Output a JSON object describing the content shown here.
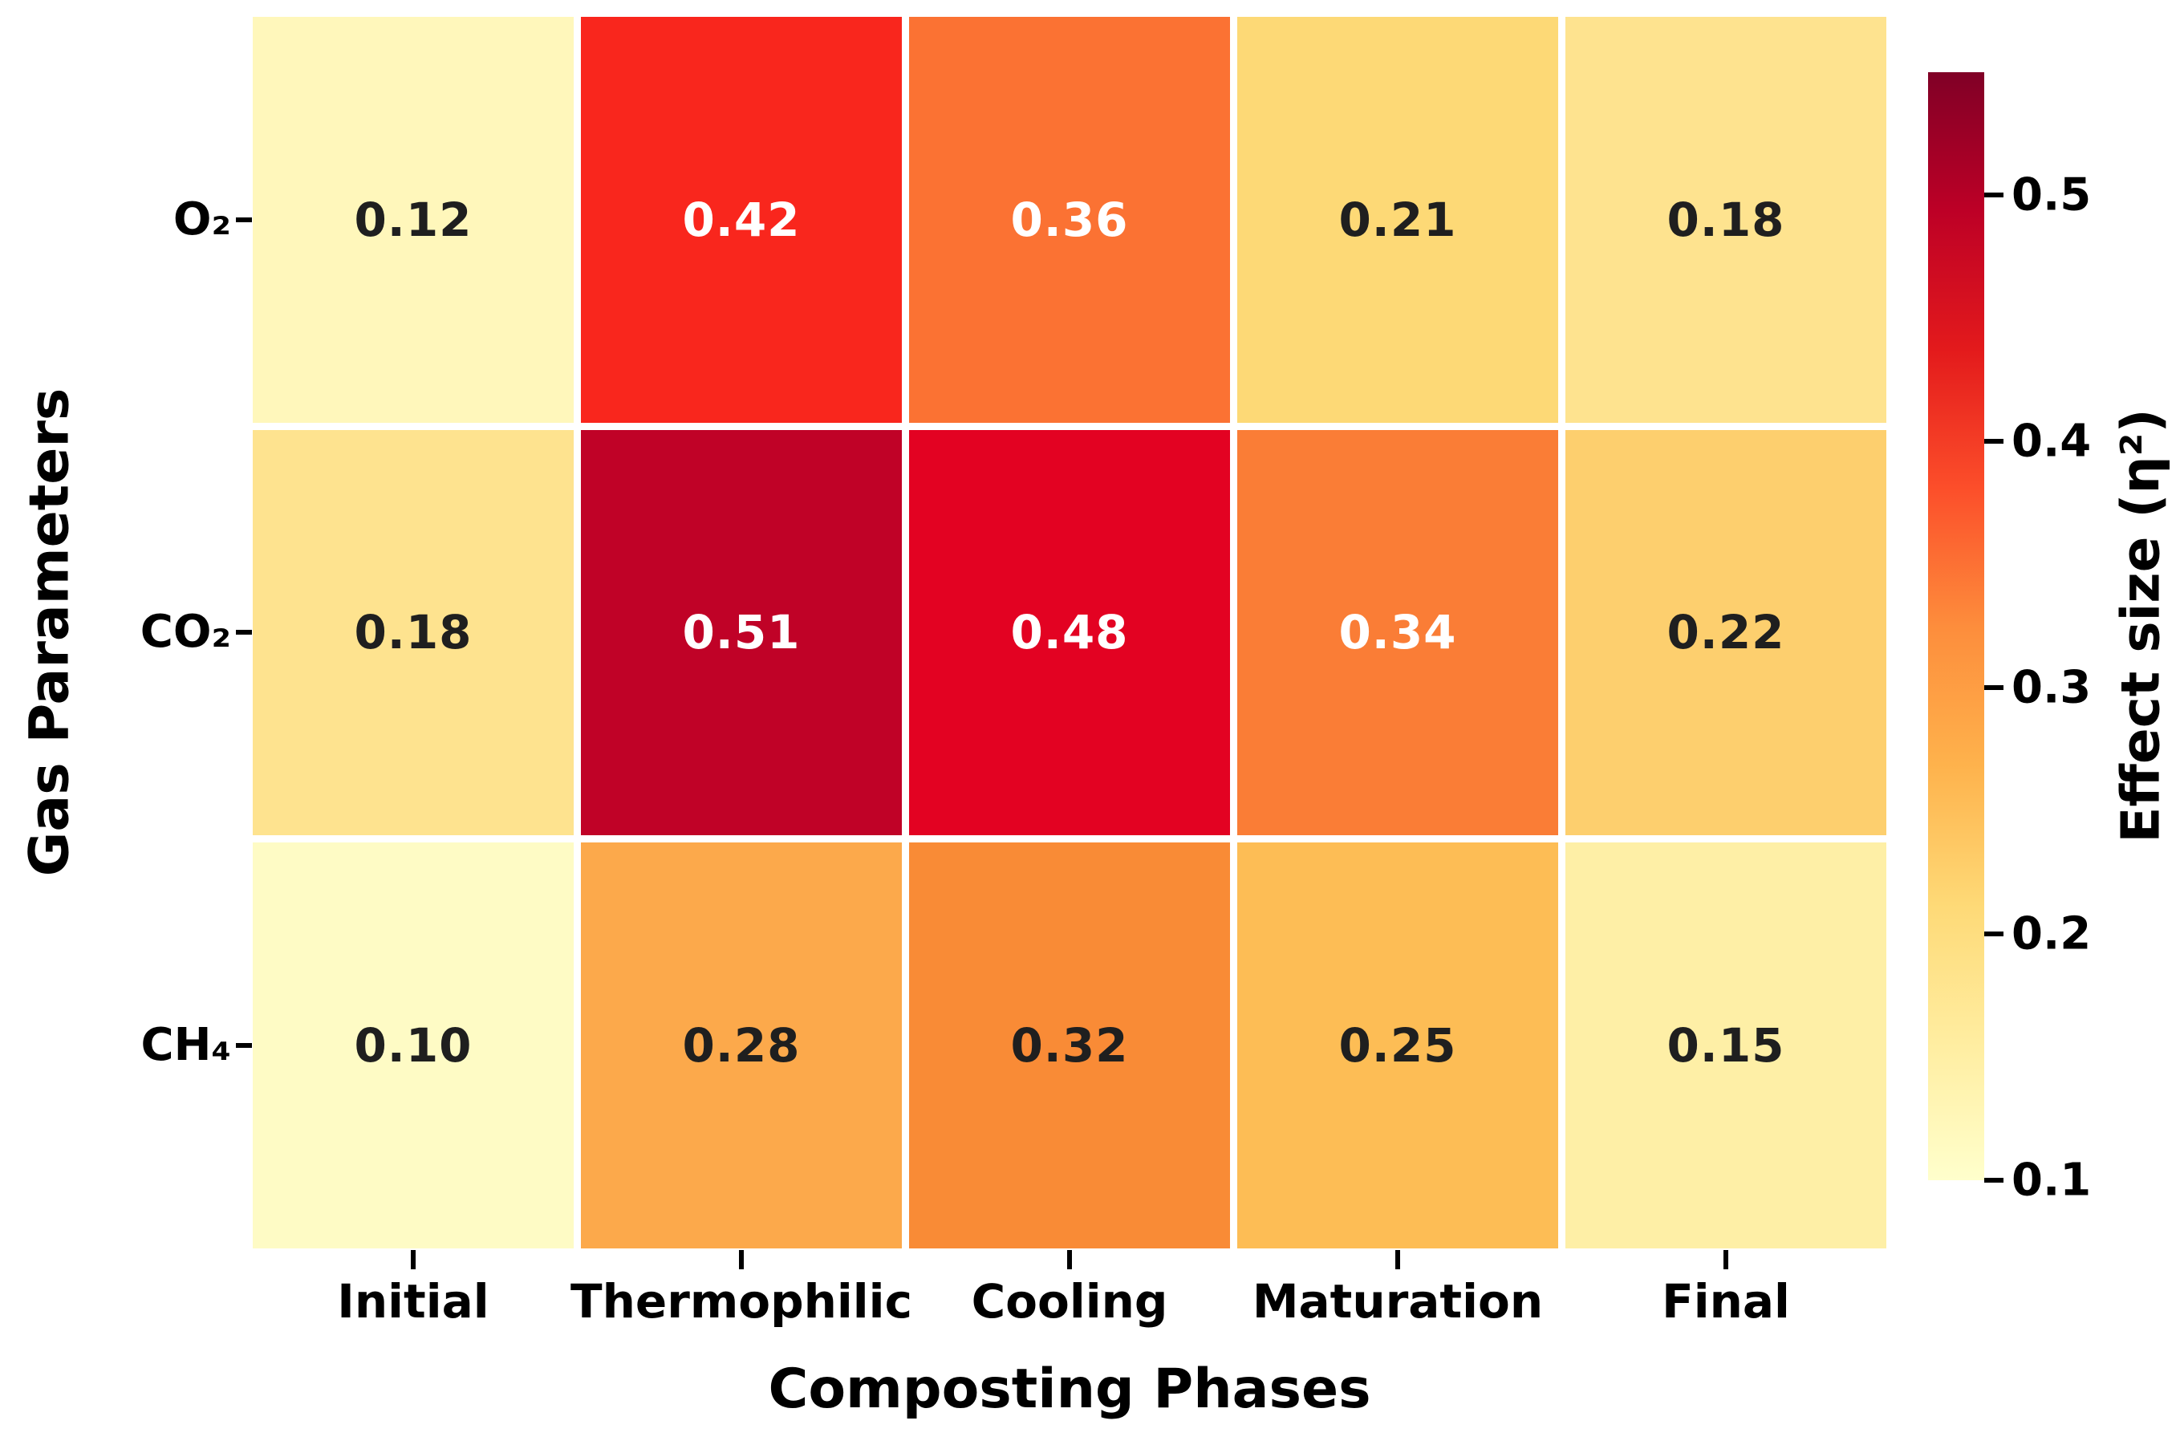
{
  "figure": {
    "background": "#ffffff",
    "text_color": "#000000"
  },
  "chart_data": {
    "type": "heatmap",
    "xlabel": "Composting Phases",
    "ylabel": "Gas Parameters",
    "columns": [
      "Initial",
      "Thermophilic",
      "Cooling",
      "Maturation",
      "Final"
    ],
    "rows": [
      "O₂",
      "CO₂",
      "CH₄"
    ],
    "values": [
      [
        0.12,
        0.42,
        0.36,
        0.21,
        0.18
      ],
      [
        0.18,
        0.51,
        0.48,
        0.34,
        0.22
      ],
      [
        0.1,
        0.28,
        0.32,
        0.25,
        0.15
      ]
    ],
    "value_decimals": 2,
    "cell_colors": [
      [
        "#FFF7BB",
        "#F9261D",
        "#FB7233",
        "#FDD976",
        "#FEE38F"
      ],
      [
        "#FEE38F",
        "#C00227",
        "#E30222",
        "#FA7D36",
        "#FDCF6E"
      ],
      [
        "#FEFBC5",
        "#FCA94B",
        "#F98B36",
        "#FDBD55",
        "#FEEFA6"
      ]
    ],
    "annotation_colors": {
      "dark": "#1f1f1f",
      "light": "#ffffff"
    },
    "white_text_min": 0.34,
    "grid_lines": "white",
    "colorbar": {
      "label": "Effect size (η²)",
      "vmin": 0.1,
      "vmax": 0.55,
      "ticks": [
        0.5,
        0.4,
        0.3,
        0.2,
        0.1
      ],
      "colormap": "YlOrRd",
      "gradient_stops": [
        "#ffffcc",
        "#ffeda0",
        "#fed976",
        "#feb24c",
        "#fd8d3c",
        "#fc4e2a",
        "#e31a1c",
        "#bd0026",
        "#800026"
      ]
    }
  }
}
